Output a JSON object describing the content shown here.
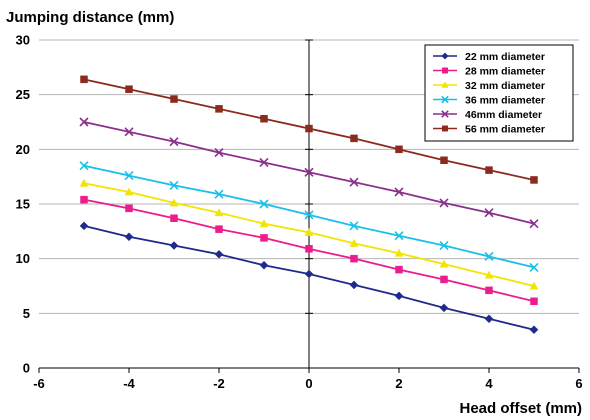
{
  "chart_data": {
    "type": "line",
    "ylabel": "Jumping distance (mm)",
    "xlabel": "Head offset (mm)",
    "xlim": [
      -6,
      6
    ],
    "ylim": [
      0,
      30
    ],
    "x_ticks": [
      -6,
      -4,
      -2,
      0,
      2,
      4,
      6
    ],
    "y_ticks": [
      0,
      5,
      10,
      15,
      20,
      25,
      30
    ],
    "grid": "horizontal",
    "legend_position": "top-right",
    "x": [
      -5,
      -4,
      -3,
      -2,
      -1,
      0,
      1,
      2,
      3,
      4,
      5
    ],
    "series": [
      {
        "name": "22 mm diameter",
        "color": "#1f2a8c",
        "marker": "diamond",
        "values": [
          13.0,
          12.0,
          11.2,
          10.4,
          9.4,
          8.6,
          7.6,
          6.6,
          5.5,
          4.5,
          3.5
        ]
      },
      {
        "name": "28 mm diameter",
        "color": "#ec1c8c",
        "marker": "square",
        "values": [
          15.4,
          14.6,
          13.7,
          12.7,
          11.9,
          10.9,
          10.0,
          9.0,
          8.1,
          7.1,
          6.1
        ]
      },
      {
        "name": "32 mm diameter",
        "color": "#f2e500",
        "marker": "triangle",
        "values": [
          16.9,
          16.1,
          15.1,
          14.2,
          13.2,
          12.4,
          11.4,
          10.5,
          9.5,
          8.5,
          7.5
        ]
      },
      {
        "name": "36 mm diameter",
        "color": "#18c0ea",
        "marker": "x",
        "values": [
          18.5,
          17.6,
          16.7,
          15.9,
          15.0,
          14.0,
          13.0,
          12.1,
          11.2,
          10.2,
          9.2
        ]
      },
      {
        "name": "46mm diameter",
        "color": "#8b2f8c",
        "marker": "x",
        "values": [
          22.5,
          21.6,
          20.7,
          19.7,
          18.8,
          17.9,
          17.0,
          16.1,
          15.1,
          14.2,
          13.2
        ]
      },
      {
        "name": "56 mm diameter",
        "color": "#8b2a1f",
        "marker": "square",
        "values": [
          26.4,
          25.5,
          24.6,
          23.7,
          22.8,
          21.9,
          21.0,
          20.0,
          19.0,
          18.1,
          17.2
        ]
      }
    ]
  }
}
